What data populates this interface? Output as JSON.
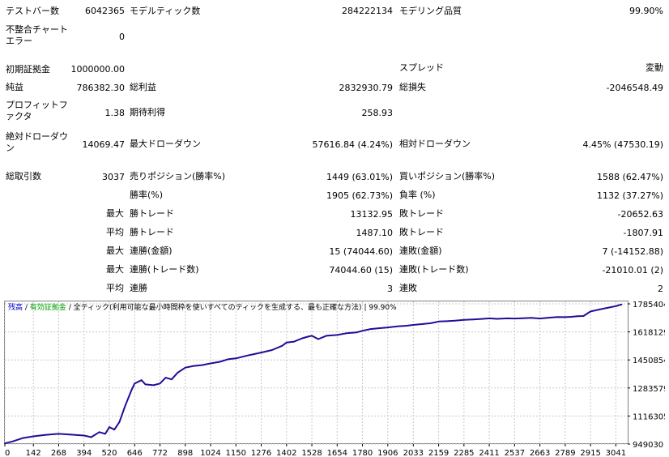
{
  "stats": {
    "bars_label": "テストバー数",
    "bars_value": "6042365",
    "ticks_label": "モデルティック数",
    "ticks_value": "284222134",
    "quality_label": "モデリング品質",
    "quality_value": "99.90%",
    "mismatch_label": "不整合チャートエラー",
    "mismatch_value": "0",
    "deposit_label": "初期証拠金",
    "deposit_value": "1000000.00",
    "spread_label": "スプレッド",
    "spread_value": "変動",
    "net_profit_label": "純益",
    "net_profit_value": "786382.30",
    "gross_profit_label": "総利益",
    "gross_profit_value": "2832930.79",
    "gross_loss_label": "総損失",
    "gross_loss_value": "-2046548.49",
    "pf_label": "プロフィットファクタ",
    "pf_value": "1.38",
    "payoff_label": "期待利得",
    "payoff_value": "258.93",
    "abs_dd_label": "絶対ドローダウン",
    "abs_dd_value": "14069.47",
    "max_dd_label": "最大ドローダウン",
    "max_dd_value": "57616.84 (4.24%)",
    "rel_dd_label": "相対ドローダウン",
    "rel_dd_value": "4.45% (47530.19)",
    "total_trades_label": "総取引数",
    "total_trades_value": "3037",
    "short_label": "売りポジション(勝率%)",
    "short_value": "1449 (63.01%)",
    "long_label": "買いポジション(勝率%)",
    "long_value": "1588 (62.47%)",
    "win_rate_label": "勝率(%)",
    "win_rate_value": "1905 (62.73%)",
    "loss_rate_label": "負率 (%)",
    "loss_rate_value": "1132 (37.27%)",
    "max_word": "最大",
    "avg_word": "平均",
    "largest_win_label": "勝トレード",
    "largest_win_value": "13132.95",
    "largest_loss_label": "敗トレード",
    "largest_loss_value": "-20652.63",
    "avg_win_label": "勝トレード",
    "avg_win_value": "1487.10",
    "avg_loss_label": "敗トレード",
    "avg_loss_value": "-1807.91",
    "max_consec_wins_label": "連勝(金額)",
    "max_consec_wins_value": "15 (74044.60)",
    "max_consec_losses_label": "連敗(金額)",
    "max_consec_losses_value": "7 (-14152.88)",
    "max_consec_profit_label": "連勝(トレード数)",
    "max_consec_profit_value": "74044.60 (15)",
    "max_consec_loss_label": "連敗(トレード数)",
    "max_consec_loss_value": "-21010.01 (2)",
    "avg_consec_wins_label": "連勝",
    "avg_consec_wins_value": "3",
    "avg_consec_losses_label": "連敗",
    "avg_consec_losses_value": "2"
  },
  "chart_data": {
    "type": "line",
    "legend": {
      "balance": "残高",
      "sep1": " / ",
      "equity": "有効証拠金",
      "sep2": " / ",
      "model": "全ティック(利用可能な最小時間枠を使いすべてのティックを生成する、最も正確な方法)",
      "sep3": " | ",
      "quality": "99.90%"
    },
    "colors": {
      "balance": "#0000cc",
      "equity": "#00a000",
      "line": "#1e0f96",
      "grid": "#c8c8c8",
      "frame": "#808080"
    },
    "x_ticks": [
      "0",
      "142",
      "268",
      "394",
      "520",
      "646",
      "772",
      "898",
      "1024",
      "1150",
      "1276",
      "1402",
      "1528",
      "1654",
      "1780",
      "1906",
      "2033",
      "2159",
      "2285",
      "2411",
      "2537",
      "2663",
      "2789",
      "2915",
      "3041"
    ],
    "y_ticks": [
      "949030",
      "1116305",
      "1283579",
      "1450854",
      "1618129",
      "1785404"
    ],
    "xlim": [
      0,
      3100
    ],
    "ylim": [
      949030,
      1800000
    ],
    "series": [
      {
        "x": [
          0,
          40,
          90,
          142,
          200,
          268,
          330,
          394,
          430,
          470,
          500,
          520,
          545,
          570,
          600,
          630,
          646,
          680,
          700,
          740,
          772,
          800,
          830,
          860,
          898,
          940,
          980,
          1024,
          1070,
          1110,
          1150,
          1200,
          1250,
          1276,
          1330,
          1380,
          1402,
          1440,
          1480,
          1510,
          1528,
          1560,
          1600,
          1654,
          1700,
          1750,
          1780,
          1820,
          1860,
          1906,
          1960,
          2000,
          2033,
          2080,
          2120,
          2159,
          2200,
          2240,
          2285,
          2330,
          2380,
          2411,
          2450,
          2500,
          2537,
          2580,
          2620,
          2663,
          2700,
          2750,
          2789,
          2820,
          2850,
          2880,
          2915,
          2960,
          3000,
          3041,
          3070
        ],
        "y": [
          953000,
          965000,
          985000,
          995000,
          1003000,
          1010000,
          1005000,
          1000000,
          990000,
          1020000,
          1010000,
          1050000,
          1035000,
          1080000,
          1180000,
          1270000,
          1310000,
          1330000,
          1305000,
          1300000,
          1310000,
          1345000,
          1335000,
          1375000,
          1405000,
          1415000,
          1420000,
          1430000,
          1440000,
          1455000,
          1460000,
          1475000,
          1488000,
          1495000,
          1510000,
          1535000,
          1555000,
          1560000,
          1580000,
          1590000,
          1595000,
          1575000,
          1595000,
          1600000,
          1610000,
          1615000,
          1625000,
          1635000,
          1640000,
          1645000,
          1652000,
          1655000,
          1660000,
          1665000,
          1670000,
          1680000,
          1682000,
          1685000,
          1690000,
          1692000,
          1696000,
          1699000,
          1696000,
          1699000,
          1698000,
          1700000,
          1702000,
          1698000,
          1702000,
          1707000,
          1706000,
          1708000,
          1712000,
          1713000,
          1740000,
          1752000,
          1762000,
          1772000,
          1782000
        ]
      }
    ]
  }
}
